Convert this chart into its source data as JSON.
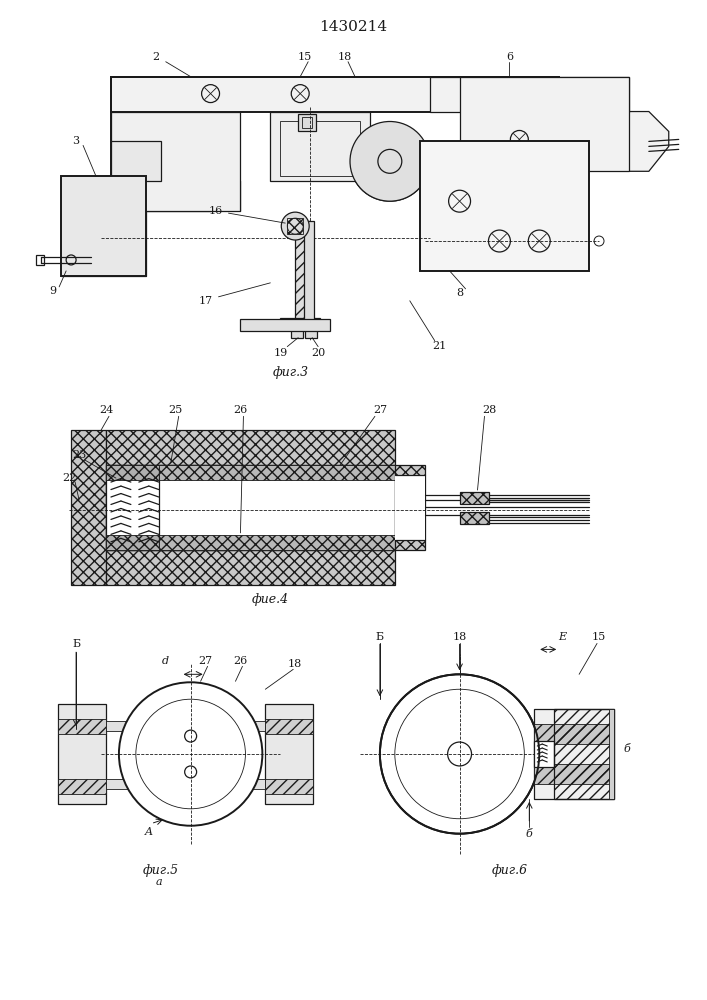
{
  "title": "1430214",
  "bg_color": "#ffffff",
  "line_color": "#1a1a1a",
  "fig3_label": "фиг.3",
  "fig4_label": "фие.4",
  "fig5_label": "фиг.5",
  "fig5_sub": "a",
  "fig6_label": "фиг.6",
  "figsize": [
    7.07,
    10.0
  ],
  "dpi": 100
}
